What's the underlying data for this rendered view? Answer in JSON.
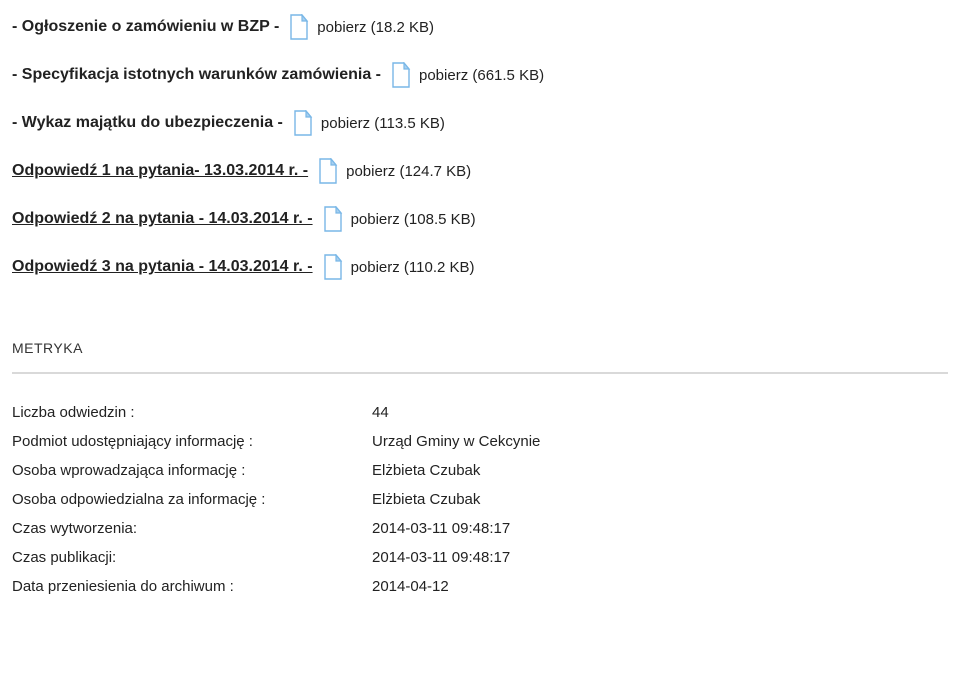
{
  "files": [
    {
      "label": "- Ogłoszenie o zamówieniu w BZP -",
      "download": "pobierz (18.2 KB)",
      "underline": false
    },
    {
      "label": "- Specyfikacja istotnych warunków zamówienia -",
      "download": "pobierz (661.5 KB)",
      "underline": false
    },
    {
      "label": "- Wykaz majątku do ubezpieczenia -",
      "download": "pobierz (113.5 KB)",
      "underline": false
    },
    {
      "label": "Odpowiedź 1 na pytania- 13.03.2014 r. -",
      "download": "pobierz (124.7 KB)",
      "underline": true
    },
    {
      "label": "Odpowiedź 2 na pytania - 14.03.2014 r. -",
      "download": "pobierz (108.5 KB)",
      "underline": true
    },
    {
      "label": "Odpowiedź 3 na pytania - 14.03.2014 r. -",
      "download": "pobierz (110.2 KB)",
      "underline": true
    }
  ],
  "metryka": {
    "title": "METRYKA",
    "rows": [
      {
        "key": "Liczba odwiedzin :",
        "val": "44"
      },
      {
        "key": "Podmiot udostępniający informację :",
        "val": "Urząd Gminy w Cekcynie"
      },
      {
        "key": "Osoba wprowadzająca informację :",
        "val": "Elżbieta Czubak"
      },
      {
        "key": "Osoba odpowiedzialna za informację :",
        "val": "Elżbieta Czubak"
      },
      {
        "key": "Czas wytworzenia:",
        "val": "2014-03-11 09:48:17"
      },
      {
        "key": "Czas publikacji:",
        "val": "2014-03-11 09:48:17"
      },
      {
        "key": "Data przeniesienia do archiwum :",
        "val": "2014-04-12"
      }
    ]
  },
  "colors": {
    "icon_outline": "#79b7e7",
    "icon_fold": "#a8d0f0",
    "text": "#222222",
    "hr": "#d9d9d9"
  }
}
